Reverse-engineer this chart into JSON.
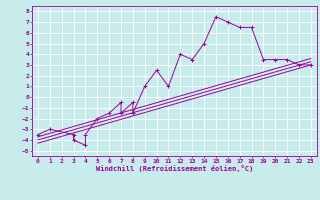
{
  "xlabel": "Windchill (Refroidissement éolien,°C)",
  "background_color": "#c8ecec",
  "line_color": "#990099",
  "grid_color": "#ffffff",
  "xlim": [
    -0.5,
    23.5
  ],
  "ylim": [
    -5.5,
    8.5
  ],
  "xticks": [
    0,
    1,
    2,
    3,
    4,
    5,
    6,
    7,
    8,
    9,
    10,
    11,
    12,
    13,
    14,
    15,
    16,
    17,
    18,
    19,
    20,
    21,
    22,
    23
  ],
  "yticks": [
    -5,
    -4,
    -3,
    -2,
    -1,
    0,
    1,
    2,
    3,
    4,
    5,
    6,
    7,
    8
  ],
  "data_x": [
    0,
    1,
    3,
    3,
    4,
    4,
    5,
    6,
    7,
    7,
    8,
    8,
    9,
    10,
    11,
    12,
    13,
    14,
    15,
    16,
    17,
    18,
    19,
    20,
    21,
    22,
    23
  ],
  "data_y": [
    -3.5,
    -3,
    -3.5,
    -4,
    -4.5,
    -3.5,
    -2,
    -1.5,
    -0.5,
    -1.5,
    -0.5,
    -1.5,
    1,
    2.5,
    1,
    4,
    3.5,
    5,
    7.5,
    7,
    6.5,
    6.5,
    3.5,
    3.5,
    3.5,
    3,
    3
  ],
  "trend1_x": [
    0,
    23
  ],
  "trend1_y": [
    -4.3,
    3.0
  ],
  "trend2_x": [
    0,
    23
  ],
  "trend2_y": [
    -4.0,
    3.3
  ],
  "trend3_x": [
    0,
    23
  ],
  "trend3_y": [
    -3.7,
    3.6
  ]
}
